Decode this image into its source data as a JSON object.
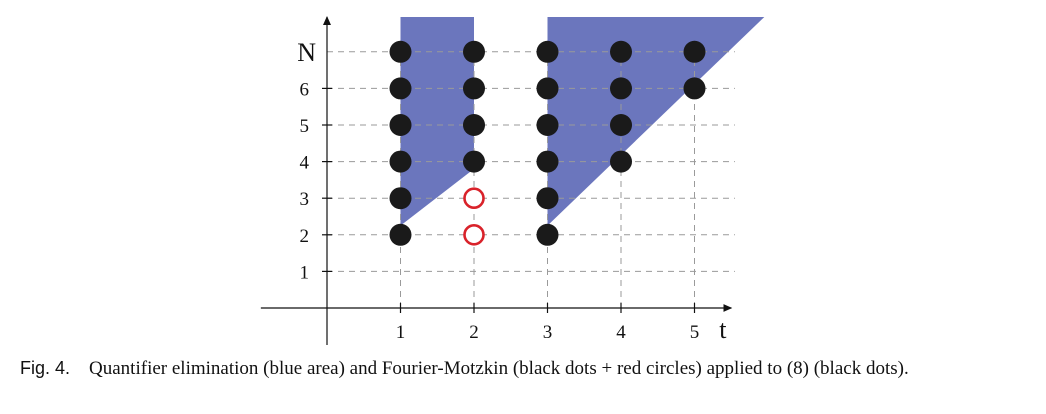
{
  "chart_data": {
    "type": "scatter",
    "xlabel": "t",
    "ylabel": "N",
    "x_ticks": [
      1,
      2,
      3,
      4,
      5
    ],
    "y_ticks": [
      1,
      2,
      3,
      4,
      5,
      6
    ],
    "xlim": [
      -0.9,
      5.5
    ],
    "ylim": [
      -1.15,
      7.95
    ],
    "grid": "dashed",
    "regions": [
      {
        "name": "blue area",
        "color": "#6b76bd",
        "polygon": [
          [
            1,
            7.95
          ],
          [
            2,
            7.95
          ],
          [
            2,
            3.8
          ],
          [
            1,
            2.25
          ]
        ]
      },
      {
        "name": "blue area",
        "color": "#6b76bd",
        "polygon": [
          [
            3,
            7.95
          ],
          [
            5.95,
            7.95
          ],
          [
            3,
            2.25
          ]
        ]
      }
    ],
    "series": [
      {
        "name": "black dots",
        "marker": "filled-circle",
        "color": "#1a1a1a",
        "points": [
          [
            1,
            2
          ],
          [
            1,
            3
          ],
          [
            1,
            4
          ],
          [
            1,
            5
          ],
          [
            1,
            6
          ],
          [
            1,
            7
          ],
          [
            2,
            4
          ],
          [
            2,
            5
          ],
          [
            2,
            6
          ],
          [
            2,
            7
          ],
          [
            3,
            2
          ],
          [
            3,
            3
          ],
          [
            3,
            4
          ],
          [
            3,
            5
          ],
          [
            3,
            6
          ],
          [
            3,
            7
          ],
          [
            4,
            4
          ],
          [
            4,
            5
          ],
          [
            4,
            6
          ],
          [
            4,
            7
          ],
          [
            5,
            6
          ],
          [
            5,
            7
          ]
        ]
      },
      {
        "name": "red circles",
        "marker": "open-circle",
        "color": "#d9222a",
        "points": [
          [
            2,
            2
          ],
          [
            2,
            3
          ]
        ]
      }
    ]
  },
  "caption": {
    "label": "Fig. 4.",
    "text": "Quantifier elimination (blue area) and Fourier-Motzkin (black dots + red circles) applied to (8) (black dots)."
  }
}
